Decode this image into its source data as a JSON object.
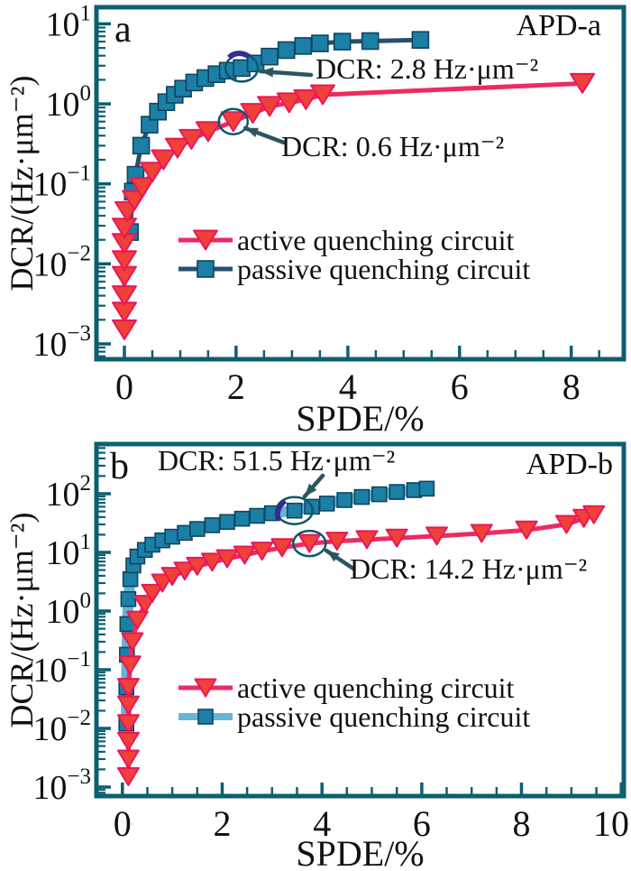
{
  "figure": {
    "background": "#ffffff"
  },
  "colors": {
    "axis": "#0c5f70",
    "text": "#111111",
    "annotation_arrow": "#2a5661",
    "highlight_circle": "#0b5868",
    "highlight_circle_accent": "#382b8e"
  },
  "chart_data": [
    {
      "type": "line",
      "panel_label": "a",
      "corner_label": "APD-a",
      "xlabel": "SPDE/%",
      "ylabel": "DCR/(Hz·μm⁻²)",
      "x_scale": "linear",
      "y_scale": "log",
      "xlim": [
        -0.5,
        8.94
      ],
      "x_major_ticks": [
        0,
        2,
        4,
        6,
        8
      ],
      "x_tick_labels": [
        "0",
        "2",
        "4",
        "6",
        "8"
      ],
      "x_minor_step": 0.5,
      "y_exp_top": 1.208,
      "y_exp_bottom": -3.192,
      "y_major_exps": [
        1,
        0,
        -1,
        -2,
        -3
      ],
      "grid": false,
      "legend_position": "inside-center-left",
      "series": [
        {
          "name": "active quenching circuit",
          "marker": "triangle-down",
          "line_color": "#ee2a62",
          "marker_fill": "#ef4136",
          "marker_edge": "#e8175d",
          "points": [
            [
              0,
              0.0015
            ],
            [
              0,
              0.0025
            ],
            [
              0,
              0.004
            ],
            [
              0,
              0.007
            ],
            [
              0,
              0.011
            ],
            [
              0,
              0.018
            ],
            [
              0,
              0.028
            ],
            [
              0.05,
              0.045
            ],
            [
              0.18,
              0.062
            ],
            [
              0.32,
              0.09
            ],
            [
              0.5,
              0.14
            ],
            [
              0.7,
              0.2
            ],
            [
              0.95,
              0.28
            ],
            [
              1.2,
              0.36
            ],
            [
              1.5,
              0.45
            ],
            [
              1.95,
              0.6
            ],
            [
              2.3,
              0.76
            ],
            [
              2.6,
              0.93
            ],
            [
              2.95,
              1.03
            ],
            [
              3.25,
              1.13
            ],
            [
              3.55,
              1.3
            ],
            [
              8.2,
              1.8
            ]
          ]
        },
        {
          "name": "passive quenching circuit",
          "marker": "square",
          "line_color": "#27506e",
          "marker_fill": "#1b7fa6",
          "marker_edge": "#10455e",
          "points": [
            [
              0.1,
              0.025
            ],
            [
              0.15,
              0.08
            ],
            [
              0.2,
              0.13
            ],
            [
              0.3,
              0.3
            ],
            [
              0.45,
              0.55
            ],
            [
              0.6,
              0.8
            ],
            [
              0.75,
              1.05
            ],
            [
              0.9,
              1.3
            ],
            [
              1.05,
              1.55
            ],
            [
              1.25,
              1.85
            ],
            [
              1.45,
              2.1
            ],
            [
              1.65,
              2.35
            ],
            [
              1.85,
              2.6
            ],
            [
              2.1,
              2.8
            ],
            [
              2.35,
              3.2
            ],
            [
              2.6,
              3.9
            ],
            [
              2.9,
              4.7
            ],
            [
              3.2,
              5.3
            ],
            [
              3.5,
              5.7
            ],
            [
              3.9,
              6.0
            ],
            [
              4.4,
              6.1
            ],
            [
              5.3,
              6.3
            ]
          ]
        }
      ],
      "annotations": [
        {
          "text": "DCR: 2.8 Hz·μm⁻²",
          "value": 2.8,
          "target": [
            2.1,
            2.8
          ],
          "series": "passive quenching circuit"
        },
        {
          "text": "DCR: 0.6 Hz·μm⁻²",
          "value": 0.6,
          "target": [
            1.95,
            0.6
          ],
          "series": "active quenching circuit"
        }
      ]
    },
    {
      "type": "line",
      "panel_label": "b",
      "corner_label": "APD-b",
      "xlabel": "SPDE/%",
      "ylabel": "DCR/(Hz·μm⁻²)",
      "x_scale": "linear",
      "y_scale": "log",
      "xlim": [
        -0.52,
        10.05
      ],
      "x_major_ticks": [
        0,
        2,
        4,
        6,
        8,
        10
      ],
      "x_tick_labels": [
        "0",
        "2",
        "4",
        "6",
        "8",
        "10"
      ],
      "x_minor_step": 0.5,
      "y_exp_top": 2.846,
      "y_exp_bottom": -3.154,
      "y_major_exps": [
        2,
        1,
        0,
        -1,
        -2,
        -3
      ],
      "grid": false,
      "legend_position": "inside-center-left",
      "series": [
        {
          "name": "active quenching circuit",
          "marker": "triangle-down",
          "line_color": "#ee2a62",
          "marker_fill": "#ef4136",
          "marker_edge": "#e8175d",
          "points": [
            [
              0.12,
              0.0015
            ],
            [
              0.12,
              0.003
            ],
            [
              0.12,
              0.006
            ],
            [
              0.12,
              0.012
            ],
            [
              0.12,
              0.025
            ],
            [
              0.12,
              0.05
            ],
            [
              0.15,
              0.12
            ],
            [
              0.2,
              0.3
            ],
            [
              0.3,
              0.7
            ],
            [
              0.45,
              1.3
            ],
            [
              0.6,
              2.0
            ],
            [
              0.8,
              3.0
            ],
            [
              1.0,
              3.9
            ],
            [
              1.25,
              4.8
            ],
            [
              1.5,
              5.8
            ],
            [
              1.8,
              6.8
            ],
            [
              2.1,
              7.8
            ],
            [
              2.45,
              9.0
            ],
            [
              2.8,
              10.5
            ],
            [
              3.2,
              12
            ],
            [
              3.75,
              14.2
            ],
            [
              4.3,
              15.5
            ],
            [
              4.9,
              16.5
            ],
            [
              5.5,
              17.5
            ],
            [
              6.3,
              19
            ],
            [
              7.2,
              21
            ],
            [
              8.1,
              24
            ],
            [
              8.9,
              30
            ],
            [
              9.25,
              38
            ],
            [
              9.45,
              44
            ]
          ]
        },
        {
          "name": "passive quenching circuit",
          "marker": "square",
          "line_color": "#66b5d6",
          "marker_fill": "#1b7fa6",
          "marker_edge": "#10455e",
          "points": [
            [
              0.08,
              0.012
            ],
            [
              0.08,
              0.05
            ],
            [
              0.09,
              0.18
            ],
            [
              0.1,
              0.6
            ],
            [
              0.12,
              1.6
            ],
            [
              0.16,
              3.5
            ],
            [
              0.22,
              6
            ],
            [
              0.3,
              8.5
            ],
            [
              0.45,
              11
            ],
            [
              0.6,
              13.5
            ],
            [
              0.8,
              16
            ],
            [
              1.0,
              18.5
            ],
            [
              1.25,
              21.5
            ],
            [
              1.5,
              25
            ],
            [
              1.8,
              29
            ],
            [
              2.1,
              33
            ],
            [
              2.4,
              37.5
            ],
            [
              2.7,
              42
            ],
            [
              3.0,
              46.5
            ],
            [
              3.45,
              51.5
            ],
            [
              3.8,
              60
            ],
            [
              4.1,
              68
            ],
            [
              4.45,
              78
            ],
            [
              4.8,
              88
            ],
            [
              5.15,
              98
            ],
            [
              5.5,
              107
            ],
            [
              5.85,
              115
            ],
            [
              6.1,
              122
            ]
          ]
        }
      ],
      "annotations": [
        {
          "text": "DCR: 51.5 Hz·μm⁻²",
          "value": 51.5,
          "target": [
            3.45,
            51.5
          ],
          "series": "passive quenching circuit"
        },
        {
          "text": "DCR: 14.2 Hz·μm⁻²",
          "value": 14.2,
          "target": [
            3.75,
            14.2
          ],
          "series": "active quenching circuit"
        }
      ]
    }
  ]
}
